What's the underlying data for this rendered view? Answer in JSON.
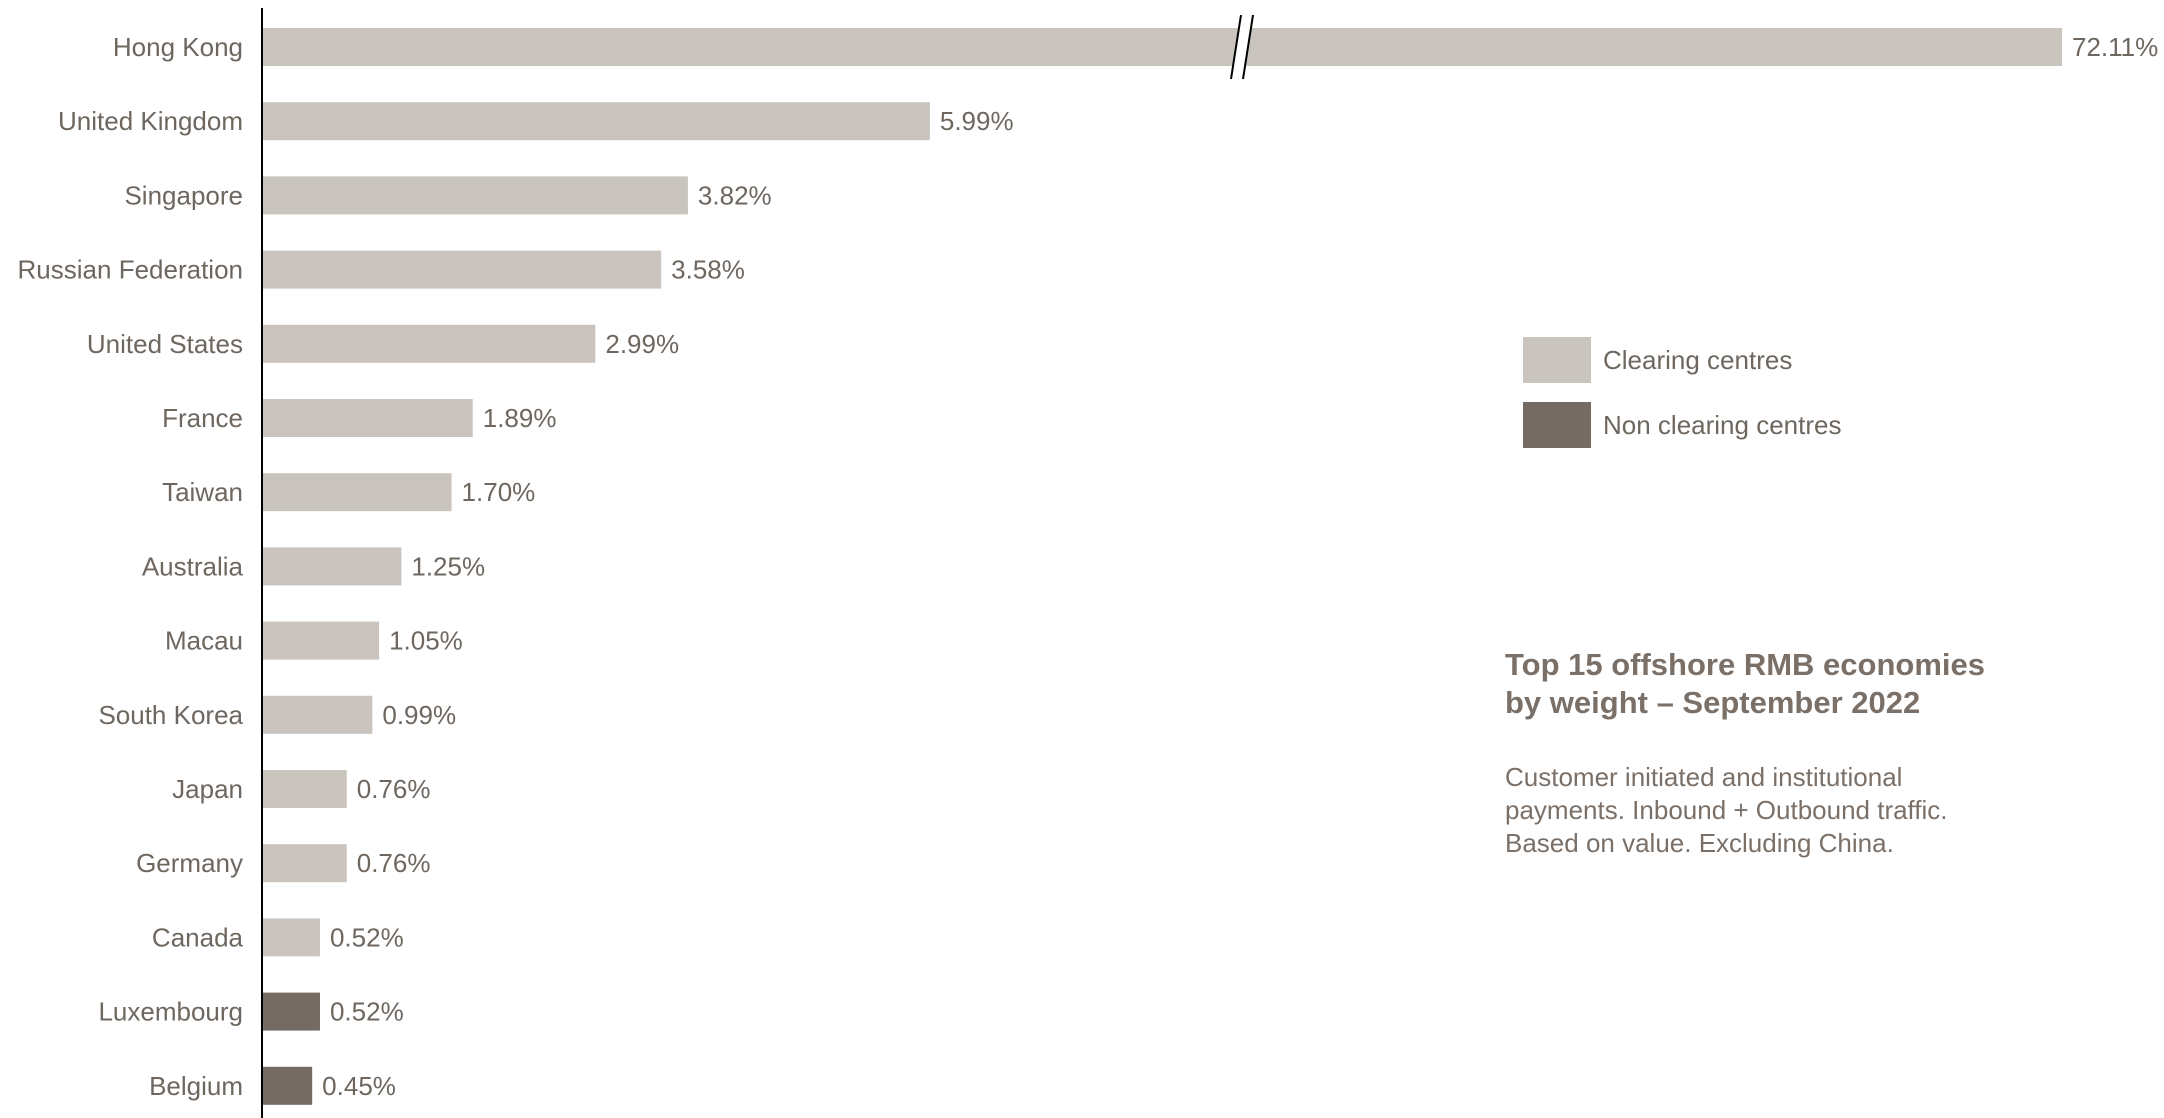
{
  "chart_data": {
    "type": "bar",
    "orientation": "horizontal",
    "title": "Top 15 offshore RMB economies\nby weight – September 2022",
    "subtitle": "Customer initiated and institutional\npayments. Inbound + Outbound traffic.\nBased on value. Excluding China.",
    "categories": [
      "Hong Kong",
      "United Kingdom",
      "Singapore",
      "Russian Federation",
      "United States",
      "France",
      "Taiwan",
      "Australia",
      "Macau",
      "South Korea",
      "Japan",
      "Germany",
      "Canada",
      "Luxembourg",
      "Belgium"
    ],
    "values": [
      72.11,
      5.99,
      3.82,
      3.58,
      2.99,
      1.89,
      1.7,
      1.25,
      1.05,
      0.99,
      0.76,
      0.76,
      0.52,
      0.52,
      0.45
    ],
    "value_labels": [
      "72.11%",
      "5.99%",
      "3.82%",
      "3.58%",
      "2.99%",
      "1.89%",
      "1.70%",
      "1.25%",
      "1.05%",
      "0.99%",
      "0.76%",
      "0.76%",
      "0.52%",
      "0.52%",
      "0.45%"
    ],
    "groups": [
      "clearing",
      "clearing",
      "clearing",
      "clearing",
      "clearing",
      "clearing",
      "clearing",
      "clearing",
      "clearing",
      "clearing",
      "clearing",
      "clearing",
      "clearing",
      "non_clearing",
      "non_clearing"
    ],
    "axis_break": {
      "on_category": "Hong Kong"
    },
    "legend": [
      {
        "key": "clearing",
        "label": "Clearing centres",
        "color": "#c9c4be"
      },
      {
        "key": "non_clearing",
        "label": "Non clearing centres",
        "color": "#756b63"
      }
    ],
    "legend_position": "right",
    "grid": false
  }
}
